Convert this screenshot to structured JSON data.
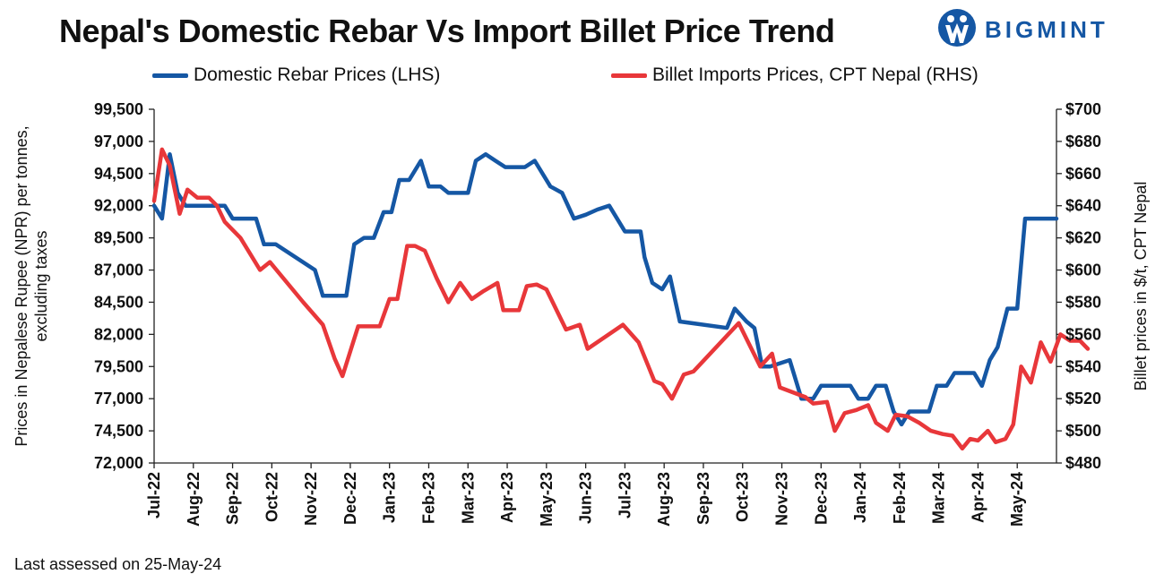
{
  "brand": {
    "name": "BIGMINT",
    "logo_icon": "bigmint-logo-icon",
    "color": "#1557a4"
  },
  "footnote": "Last assessed on 25-May-24",
  "chart_data": {
    "type": "line",
    "title": "Nepal's Domestic Rebar Vs Import Billet Price Trend",
    "ylabel": "Prices in Nepalese Rupee (NPR) per tonnes, excluding taxes",
    "y2label": "Billet prices in $/t, CPT Nepal",
    "ylim": [
      72000,
      99500
    ],
    "y2lim": [
      480,
      700
    ],
    "yticks": [
      "72,000",
      "74,500",
      "77,000",
      "79,500",
      "82,000",
      "84,500",
      "87,000",
      "89,500",
      "92,000",
      "94,500",
      "97,000",
      "99,500"
    ],
    "y2ticks": [
      "$480",
      "$500",
      "$520",
      "$540",
      "$560",
      "$580",
      "$600",
      "$620",
      "$640",
      "$660",
      "$680",
      "$700"
    ],
    "x_ticks": [
      "Jul-22",
      "Aug-22",
      "Sep-22",
      "Oct-22",
      "Nov-22",
      "Dec-22",
      "Jan-23",
      "Feb-23",
      "Mar-23",
      "Apr-23",
      "May-23",
      "Jun-23",
      "Jul-23",
      "Aug-23",
      "Sep-23",
      "Oct-23",
      "Nov-23",
      "Dec-23",
      "Jan-24",
      "Feb-24",
      "Mar-24",
      "Apr-24",
      "May-24"
    ],
    "grid": false,
    "legend_position": "top",
    "series": [
      {
        "name": "Domestic Rebar Prices (LHS)",
        "axis": "left",
        "color": "#1557a4",
        "points": [
          [
            0,
            92000
          ],
          [
            0.2,
            91000
          ],
          [
            0.4,
            96000
          ],
          [
            0.6,
            93000
          ],
          [
            0.8,
            92000
          ],
          [
            1.1,
            92000
          ],
          [
            1.4,
            92000
          ],
          [
            1.8,
            92000
          ],
          [
            2.0,
            91000
          ],
          [
            2.3,
            91000
          ],
          [
            2.6,
            91000
          ],
          [
            2.8,
            89000
          ],
          [
            3.1,
            89000
          ],
          [
            4.1,
            87000
          ],
          [
            4.3,
            85000
          ],
          [
            4.6,
            85000
          ],
          [
            4.9,
            85000
          ],
          [
            5.1,
            89000
          ],
          [
            5.35,
            89500
          ],
          [
            5.6,
            89500
          ],
          [
            5.85,
            91500
          ],
          [
            6.05,
            91500
          ],
          [
            6.25,
            94000
          ],
          [
            6.5,
            94000
          ],
          [
            6.8,
            95500
          ],
          [
            7.0,
            93500
          ],
          [
            7.3,
            93500
          ],
          [
            7.5,
            93000
          ],
          [
            7.75,
            93000
          ],
          [
            8.0,
            93000
          ],
          [
            8.2,
            95500
          ],
          [
            8.45,
            96000
          ],
          [
            8.7,
            95500
          ],
          [
            8.95,
            95000
          ],
          [
            9.2,
            95000
          ],
          [
            9.45,
            95000
          ],
          [
            9.7,
            95500
          ],
          [
            10.1,
            93500
          ],
          [
            10.4,
            93000
          ],
          [
            10.7,
            91000
          ],
          [
            11.0,
            91300
          ],
          [
            11.3,
            91700
          ],
          [
            11.6,
            92000
          ],
          [
            12.0,
            90000
          ],
          [
            12.4,
            90000
          ],
          [
            12.5,
            88000
          ],
          [
            12.7,
            86000
          ],
          [
            12.95,
            85500
          ],
          [
            13.15,
            86500
          ],
          [
            13.4,
            83000
          ],
          [
            14.6,
            82500
          ],
          [
            14.8,
            84000
          ],
          [
            15.1,
            83000
          ],
          [
            15.3,
            82500
          ],
          [
            15.5,
            79500
          ],
          [
            15.7,
            79500
          ],
          [
            16.2,
            80000
          ],
          [
            16.5,
            77000
          ],
          [
            16.8,
            77000
          ],
          [
            17.0,
            78000
          ],
          [
            17.2,
            78000
          ],
          [
            17.5,
            78000
          ],
          [
            17.75,
            78000
          ],
          [
            17.95,
            77000
          ],
          [
            18.2,
            77000
          ],
          [
            18.4,
            78000
          ],
          [
            18.65,
            78000
          ],
          [
            18.85,
            76000
          ],
          [
            19.05,
            75000
          ],
          [
            19.25,
            76000
          ],
          [
            19.5,
            76000
          ],
          [
            19.75,
            76000
          ],
          [
            19.95,
            78000
          ],
          [
            20.2,
            78000
          ],
          [
            20.4,
            79000
          ],
          [
            20.65,
            79000
          ],
          [
            20.9,
            79000
          ],
          [
            21.1,
            78000
          ],
          [
            21.3,
            80000
          ],
          [
            21.5,
            81000
          ],
          [
            21.75,
            84000
          ],
          [
            22.0,
            84000
          ],
          [
            22.2,
            91000
          ],
          [
            22.5,
            91000
          ],
          [
            22.75,
            91000
          ],
          [
            23.0,
            91000
          ]
        ]
      },
      {
        "name": "Billet Imports Prices, CPT Nepal (RHS)",
        "axis": "right",
        "color": "#e8373a",
        "points": [
          [
            0,
            643
          ],
          [
            0.2,
            675
          ],
          [
            0.4,
            665
          ],
          [
            0.65,
            635
          ],
          [
            0.85,
            650
          ],
          [
            1.1,
            645
          ],
          [
            1.4,
            645
          ],
          [
            1.6,
            640
          ],
          [
            1.8,
            630
          ],
          [
            2.2,
            620
          ],
          [
            2.7,
            600
          ],
          [
            2.95,
            605
          ],
          [
            3.8,
            580
          ],
          [
            4.3,
            566
          ],
          [
            4.6,
            545
          ],
          [
            4.8,
            534
          ],
          [
            5.2,
            565
          ],
          [
            5.45,
            565
          ],
          [
            5.75,
            565
          ],
          [
            6.0,
            582
          ],
          [
            6.2,
            582
          ],
          [
            6.45,
            615
          ],
          [
            6.65,
            615
          ],
          [
            6.9,
            612
          ],
          [
            7.2,
            595
          ],
          [
            7.5,
            580
          ],
          [
            7.8,
            592
          ],
          [
            8.1,
            582
          ],
          [
            8.4,
            587
          ],
          [
            8.75,
            592
          ],
          [
            8.9,
            575
          ],
          [
            9.3,
            575
          ],
          [
            9.5,
            590
          ],
          [
            9.75,
            591
          ],
          [
            10.0,
            588
          ],
          [
            10.5,
            563
          ],
          [
            10.85,
            566
          ],
          [
            11.05,
            551
          ],
          [
            11.95,
            566
          ],
          [
            12.35,
            555
          ],
          [
            12.6,
            540
          ],
          [
            12.75,
            531
          ],
          [
            12.95,
            529
          ],
          [
            13.2,
            520
          ],
          [
            13.5,
            535
          ],
          [
            13.75,
            537
          ],
          [
            14.9,
            567
          ],
          [
            15.45,
            540
          ],
          [
            15.75,
            548
          ],
          [
            15.95,
            527
          ],
          [
            16.6,
            521
          ],
          [
            16.8,
            517
          ],
          [
            17.15,
            518
          ],
          [
            17.35,
            500
          ],
          [
            17.6,
            511
          ],
          [
            17.9,
            513
          ],
          [
            18.2,
            516
          ],
          [
            18.4,
            505
          ],
          [
            18.7,
            500
          ],
          [
            18.9,
            510
          ],
          [
            19.2,
            509
          ],
          [
            19.5,
            505
          ],
          [
            19.8,
            500
          ],
          [
            20.1,
            498
          ],
          [
            20.35,
            497
          ],
          [
            20.6,
            489
          ],
          [
            20.8,
            495
          ],
          [
            21.0,
            494
          ],
          [
            21.25,
            500
          ],
          [
            21.45,
            493
          ],
          [
            21.7,
            495
          ],
          [
            21.9,
            504
          ],
          [
            22.1,
            540
          ],
          [
            22.35,
            530
          ],
          [
            22.6,
            555
          ],
          [
            22.85,
            543
          ],
          [
            23.1,
            560
          ],
          [
            23.35,
            556
          ],
          [
            23.6,
            556
          ],
          [
            23.8,
            551
          ]
        ]
      }
    ]
  }
}
